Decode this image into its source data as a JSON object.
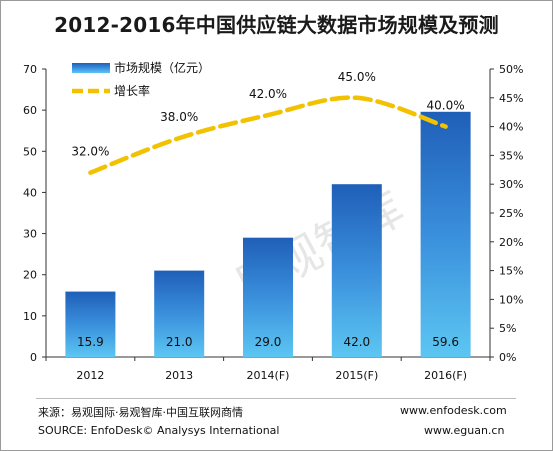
{
  "chart_data": {
    "type": "bar+line",
    "title": "2012-2016年中国供应链大数据市场规模及预测",
    "categories": [
      "2012",
      "2013",
      "2014(F)",
      "2015(F)",
      "2016(F)"
    ],
    "series": [
      {
        "name": "市场规模（亿元）",
        "type": "bar",
        "axis": "left",
        "values": [
          15.9,
          21.0,
          29.0,
          42.0,
          59.6
        ],
        "labels": [
          "15.9",
          "21.0",
          "29.0",
          "42.0",
          "59.6"
        ],
        "color": "#2f7fd1"
      },
      {
        "name": "增长率",
        "type": "line",
        "axis": "right",
        "values": [
          32.0,
          38.0,
          42.0,
          45.0,
          40.0
        ],
        "labels": [
          "32.0%",
          "38.0%",
          "42.0%",
          "45.0%",
          "40.0%"
        ],
        "color": "#f2c200"
      }
    ],
    "yleft": {
      "range": [
        0,
        70
      ],
      "ticks": [
        "0",
        "10",
        "20",
        "30",
        "40",
        "50",
        "60",
        "70"
      ]
    },
    "yright": {
      "range": [
        0,
        50
      ],
      "ticks": [
        "0%",
        "5%",
        "10%",
        "15%",
        "20%",
        "25%",
        "30%",
        "35%",
        "40%",
        "45%",
        "50%"
      ]
    },
    "legend": "top-left",
    "grid": false
  },
  "watermark": "易观智库",
  "footer": {
    "source_cn": "来源：易观国际·易观智库·中国互联网商情",
    "source_en": "SOURCE: EnfoDesk© Analysys International",
    "url1": "www.enfodesk.com",
    "url2": "www.eguan.cn"
  }
}
